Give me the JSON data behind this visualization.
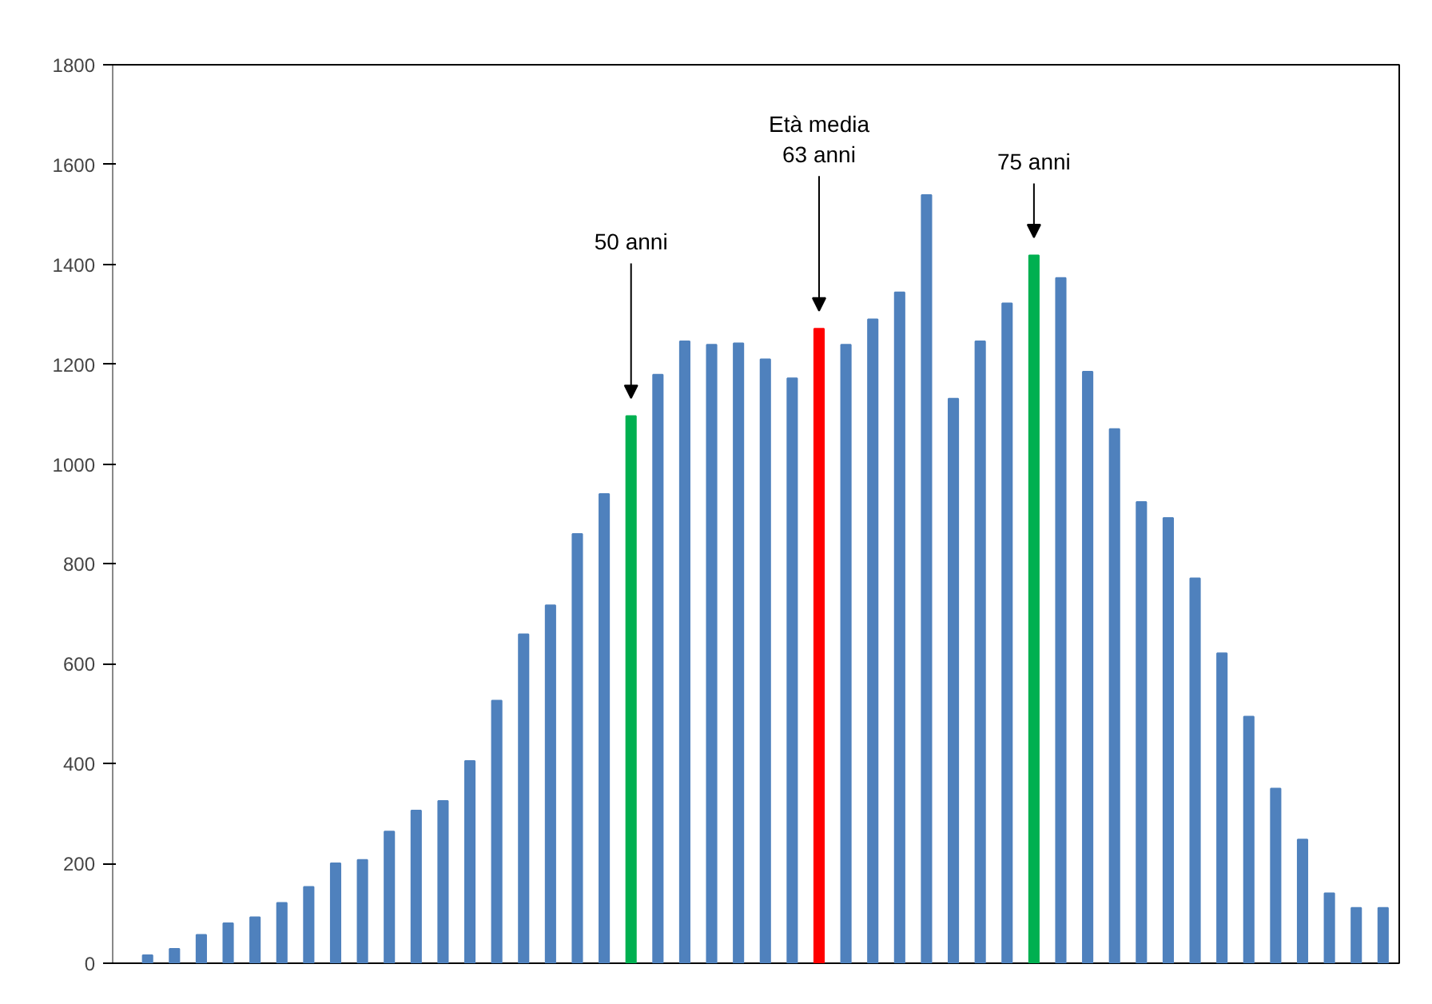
{
  "chart_data": {
    "type": "bar",
    "categories": [
      null,
      null,
      null,
      null,
      null,
      null,
      null,
      null,
      null,
      null,
      null,
      null,
      null,
      null,
      null,
      null,
      null,
      null,
      null,
      null,
      null,
      null,
      null,
      null,
      null,
      null,
      null,
      null,
      null,
      null,
      null,
      null,
      null,
      null,
      null,
      null,
      null,
      null,
      null,
      null,
      null,
      null,
      null,
      null,
      null,
      null,
      null
    ],
    "values": [
      16,
      29,
      57,
      80,
      92,
      121,
      153,
      200,
      207,
      264,
      306,
      325,
      405,
      526,
      659,
      717,
      860,
      940,
      1096,
      1179,
      1246,
      1239,
      1242,
      1210,
      1172,
      1271,
      1239,
      1290,
      1344,
      1539,
      1131,
      1246,
      1322,
      1418,
      1373,
      1185,
      1070,
      924,
      892,
      771,
      621,
      494,
      350,
      248,
      140,
      111,
      111
    ],
    "colors": [
      "#4f81bd",
      "#4f81bd",
      "#4f81bd",
      "#4f81bd",
      "#4f81bd",
      "#4f81bd",
      "#4f81bd",
      "#4f81bd",
      "#4f81bd",
      "#4f81bd",
      "#4f81bd",
      "#4f81bd",
      "#4f81bd",
      "#4f81bd",
      "#4f81bd",
      "#4f81bd",
      "#4f81bd",
      "#4f81bd",
      "#00b050",
      "#4f81bd",
      "#4f81bd",
      "#4f81bd",
      "#4f81bd",
      "#4f81bd",
      "#4f81bd",
      "#ff0000",
      "#4f81bd",
      "#4f81bd",
      "#4f81bd",
      "#4f81bd",
      "#4f81bd",
      "#4f81bd",
      "#4f81bd",
      "#00b050",
      "#4f81bd",
      "#4f81bd",
      "#4f81bd",
      "#4f81bd",
      "#4f81bd",
      "#4f81bd",
      "#4f81bd",
      "#4f81bd",
      "#4f81bd",
      "#4f81bd",
      "#4f81bd",
      "#4f81bd",
      "#4f81bd"
    ],
    "annotations": [
      "50 anni",
      "Età media\n63 anni",
      "75 anni"
    ],
    "ylim": [
      0,
      1800
    ],
    "yticks": [
      0,
      200,
      400,
      600,
      800,
      1000,
      1200,
      1400,
      1600,
      1800
    ],
    "grid": false,
    "tick_labels": "y"
  }
}
